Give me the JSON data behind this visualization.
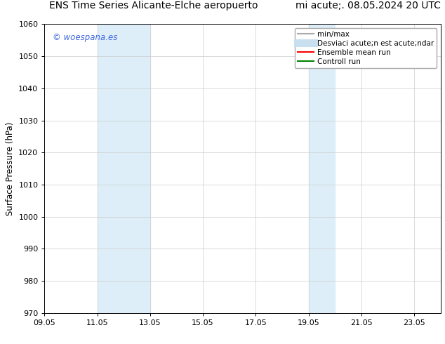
{
  "title_left": "ENS Time Series Alicante-Elche aeropuerto",
  "title_right": "mi acute;. 08.05.2024 20 UTC",
  "ylabel": "Surface Pressure (hPa)",
  "xlim_min": 9.05,
  "xlim_max": 24.05,
  "ylim_min": 970,
  "ylim_max": 1060,
  "xticks": [
    9.05,
    11.05,
    13.05,
    15.05,
    17.05,
    19.05,
    21.05,
    23.05
  ],
  "xtick_labels": [
    "09.05",
    "11.05",
    "13.05",
    "15.05",
    "17.05",
    "19.05",
    "21.05",
    "23.05"
  ],
  "yticks": [
    970,
    980,
    990,
    1000,
    1010,
    1020,
    1030,
    1040,
    1050,
    1060
  ],
  "shade_bands": [
    {
      "xmin": 11.05,
      "xmax": 13.05
    },
    {
      "xmin": 19.05,
      "xmax": 20.05
    }
  ],
  "shade_color": "#ddeef8",
  "watermark": "© woespana.es",
  "watermark_color": "#4169e1",
  "legend_labels": [
    "min/max",
    "Desviaci acute;n est acute;ndar",
    "Ensemble mean run",
    "Controll run"
  ],
  "legend_colors": [
    "#aaaaaa",
    "#c8dff0",
    "red",
    "green"
  ],
  "legend_lw": [
    1.5,
    8,
    1.5,
    1.5
  ],
  "bg_color": "#ffffff",
  "grid_color": "#cccccc",
  "title_fontsize": 10,
  "axis_fontsize": 8.5,
  "tick_fontsize": 8,
  "legend_fontsize": 7.5
}
